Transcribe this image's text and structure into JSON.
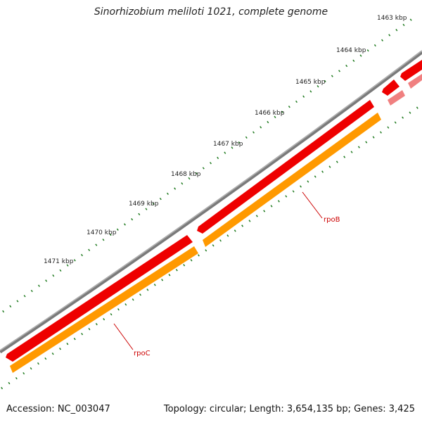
{
  "title": "Sinorhizobium meliloti 1021, complete genome",
  "footer": {
    "accession": "Accession: NC_003047",
    "topology": "Topology: circular; Length: 3,654,135 bp; Genes: 3,425"
  },
  "ruler": {
    "labels": [
      "1463 kbp",
      "1464 kbp",
      "1465 kbp",
      "1466 kbp",
      "1467 kbp",
      "1468 kbp",
      "1469 kbp",
      "1470 kbp",
      "1471 kbp"
    ]
  },
  "genes": [
    {
      "name": "rpoB",
      "strand": "reverse"
    },
    {
      "name": "rpoC",
      "strand": "reverse"
    }
  ],
  "colors": {
    "backbone": "#7a7a7a",
    "gene": "#ee0000",
    "cds": "#ff9900",
    "gene_light": "#f08080",
    "tick": "#1f7a1f",
    "label": "#cc0000"
  }
}
